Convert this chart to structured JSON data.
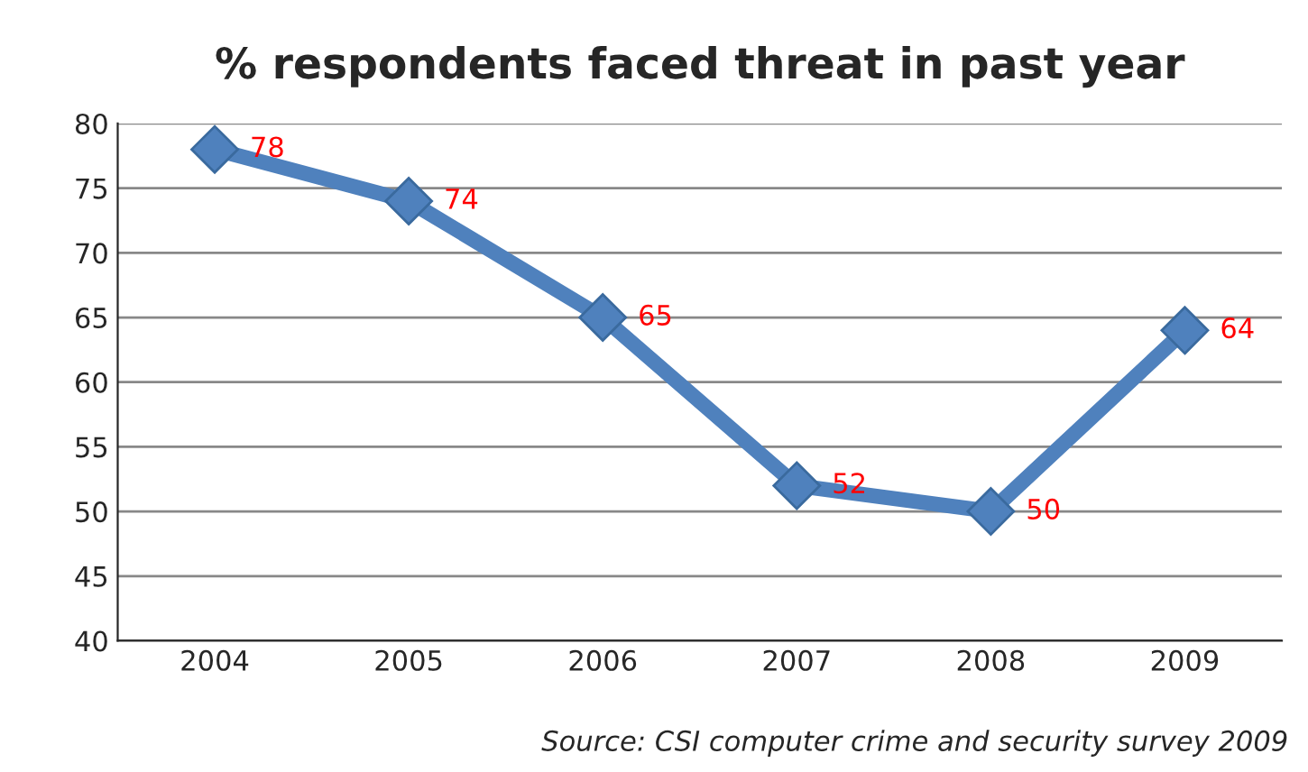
{
  "chart_data": {
    "type": "line",
    "title": "% respondents faced threat in past year",
    "categories": [
      "2004",
      "2005",
      "2006",
      "2007",
      "2008",
      "2009"
    ],
    "series": [
      {
        "color": "#4f81bd",
        "values": [
          78,
          74,
          65,
          52,
          50,
          64
        ]
      }
    ],
    "ylim": [
      40,
      80
    ],
    "yticks": [
      40,
      45,
      50,
      55,
      60,
      65,
      70,
      75,
      80
    ],
    "grid": "y",
    "marker": "diamond",
    "line_style": "solid",
    "data_labels": true,
    "annotations": [
      "Source: CSI computer crime and security survey 2009"
    ]
  }
}
